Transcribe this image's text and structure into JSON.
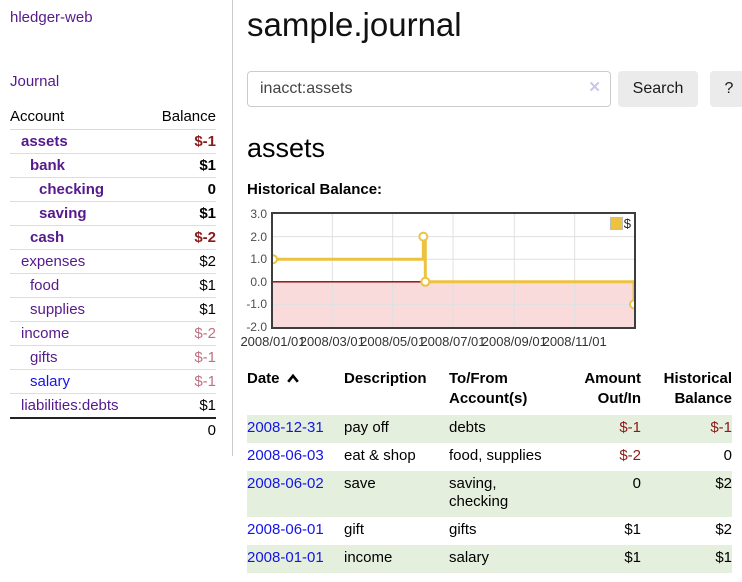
{
  "sidebar": {
    "brand": "hledger-web",
    "nav_journal": "Journal",
    "accounts": {
      "col_account": "Account",
      "col_balance": "Balance",
      "rows": [
        {
          "name": "assets",
          "balance": "$-1",
          "indent": 1,
          "matched": true,
          "tone": "neg-strong",
          "link": "purple"
        },
        {
          "name": "bank",
          "balance": "$1",
          "indent": 2,
          "matched": true,
          "tone": "normal",
          "link": "purple"
        },
        {
          "name": "checking",
          "balance": "0",
          "indent": 3,
          "matched": true,
          "tone": "normal",
          "link": "purple"
        },
        {
          "name": "saving",
          "balance": "$1",
          "indent": 3,
          "matched": true,
          "tone": "normal",
          "link": "purple"
        },
        {
          "name": "cash",
          "balance": "$-2",
          "indent": 2,
          "matched": true,
          "tone": "neg-strong",
          "link": "purple"
        },
        {
          "name": "expenses",
          "balance": "$2",
          "indent": 1,
          "matched": false,
          "tone": "normal",
          "link": "purple"
        },
        {
          "name": "food",
          "balance": "$1",
          "indent": 2,
          "matched": false,
          "tone": "normal",
          "link": "purple"
        },
        {
          "name": "supplies",
          "balance": "$1",
          "indent": 2,
          "matched": false,
          "tone": "normal",
          "link": "purple"
        },
        {
          "name": "income",
          "balance": "$-2",
          "indent": 1,
          "matched": false,
          "tone": "neg-muted",
          "link": "purple"
        },
        {
          "name": "gifts",
          "balance": "$-1",
          "indent": 2,
          "matched": false,
          "tone": "neg-muted",
          "link": "purple"
        },
        {
          "name": "salary",
          "balance": "$-1",
          "indent": 2,
          "matched": false,
          "tone": "neg-muted",
          "link": "blue"
        },
        {
          "name": "liabilities:debts",
          "balance": "$1",
          "indent": 1,
          "matched": false,
          "tone": "normal",
          "link": "purple"
        }
      ],
      "total": "0"
    }
  },
  "header": {
    "title": "sample.journal"
  },
  "search": {
    "value": "inacct:assets",
    "clear_icon": "✕",
    "button": "Search",
    "help_button": "?"
  },
  "account_page": {
    "heading": "assets",
    "chart_label": "Historical Balance:"
  },
  "chart_data": {
    "type": "line",
    "title": "Historical Balance:",
    "step": true,
    "series": [
      {
        "name": "$",
        "color": "#EDC240",
        "points": [
          [
            "2008-01-01",
            1
          ],
          [
            "2008-06-01",
            2
          ],
          [
            "2008-06-03",
            0
          ],
          [
            "2008-12-31",
            -1
          ]
        ]
      }
    ],
    "ylim": [
      -2,
      3
    ],
    "yticks": [
      "3.0",
      "2.0",
      "1.0",
      "0.0",
      "-1.0",
      "-2.0"
    ],
    "xticks": [
      "2008/01/01",
      "2008/03/01",
      "2008/05/01",
      "2008/07/01",
      "2008/09/01",
      "2008/11/01"
    ],
    "xrange": [
      "2008-01-01",
      "2008-12-31"
    ],
    "legend_position": "top-right",
    "grid": true,
    "negative_region_color": "#f9dbdb",
    "zero_line_color": "#8b0000"
  },
  "register": {
    "columns": [
      {
        "lines": [
          "Date"
        ],
        "sorted": "asc"
      },
      {
        "lines": [
          "Description"
        ]
      },
      {
        "lines": [
          "To/From",
          "Account(s)"
        ]
      },
      {
        "lines": [
          "Amount",
          "Out/In"
        ],
        "align": "right"
      },
      {
        "lines": [
          "Historical",
          "Balance"
        ],
        "align": "right"
      }
    ],
    "rows": [
      {
        "date": "2008-12-31",
        "description": "pay off",
        "accounts": "debts",
        "amount": "$-1",
        "amount_negative": true,
        "balance": "$-1",
        "balance_negative": true
      },
      {
        "date": "2008-06-03",
        "description": "eat & shop",
        "accounts": "food, supplies",
        "amount": "$-2",
        "amount_negative": true,
        "balance": "0",
        "balance_negative": false
      },
      {
        "date": "2008-06-02",
        "description": "save",
        "accounts": "saving, checking",
        "amount": "0",
        "amount_negative": false,
        "balance": "$2",
        "balance_negative": false
      },
      {
        "date": "2008-06-01",
        "description": "gift",
        "accounts": "gifts",
        "amount": "$1",
        "amount_negative": false,
        "balance": "$2",
        "balance_negative": false
      },
      {
        "date": "2008-01-01",
        "description": "income",
        "accounts": "salary",
        "amount": "$1",
        "amount_negative": false,
        "balance": "$1",
        "balance_negative": false
      }
    ]
  }
}
